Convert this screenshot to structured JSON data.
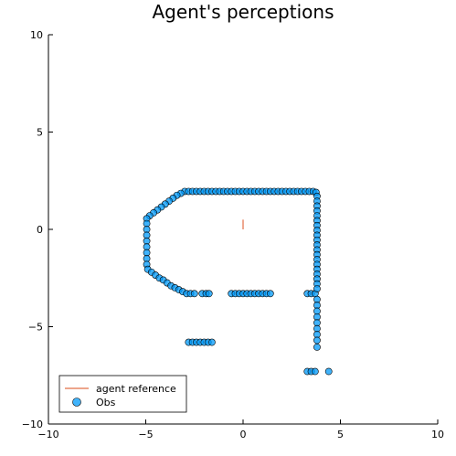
{
  "chart_data": {
    "type": "scatter",
    "title": "Agent's perceptions",
    "xlabel": "",
    "ylabel": "",
    "xlim": [
      -10,
      10
    ],
    "ylim": [
      -10,
      10
    ],
    "x_ticks": [
      -10,
      -5,
      0,
      5,
      10
    ],
    "y_ticks": [
      -10,
      -5,
      0,
      5,
      10
    ],
    "x_tick_labels": [
      "−10",
      "−5",
      "0",
      "5",
      "10"
    ],
    "y_tick_labels": [
      "−10",
      "−5",
      "0",
      "5",
      "10"
    ],
    "grid": false,
    "legend_position": "bottom-left",
    "colors": {
      "observations": "#009AFA",
      "agent_reference": "#E26F46"
    },
    "series": [
      {
        "name": "agent reference",
        "kind": "line",
        "points": [
          [
            0,
            0
          ],
          [
            0,
            0.5
          ]
        ]
      },
      {
        "name": "Obs",
        "kind": "scatter",
        "points": [
          [
            -3.0,
            1.95
          ],
          [
            -2.8,
            1.95
          ],
          [
            -2.6,
            1.95
          ],
          [
            -2.4,
            1.95
          ],
          [
            -2.2,
            1.95
          ],
          [
            -2.0,
            1.95
          ],
          [
            -1.8,
            1.95
          ],
          [
            -1.6,
            1.95
          ],
          [
            -1.4,
            1.95
          ],
          [
            -1.2,
            1.95
          ],
          [
            -1.0,
            1.95
          ],
          [
            -0.8,
            1.95
          ],
          [
            -0.6,
            1.95
          ],
          [
            -0.4,
            1.95
          ],
          [
            -0.2,
            1.95
          ],
          [
            0.0,
            1.95
          ],
          [
            0.2,
            1.95
          ],
          [
            0.4,
            1.95
          ],
          [
            0.6,
            1.95
          ],
          [
            0.8,
            1.95
          ],
          [
            1.0,
            1.95
          ],
          [
            1.2,
            1.95
          ],
          [
            1.4,
            1.95
          ],
          [
            1.6,
            1.95
          ],
          [
            1.8,
            1.95
          ],
          [
            2.0,
            1.95
          ],
          [
            2.2,
            1.95
          ],
          [
            2.4,
            1.95
          ],
          [
            2.6,
            1.95
          ],
          [
            2.8,
            1.95
          ],
          [
            3.0,
            1.95
          ],
          [
            3.2,
            1.95
          ],
          [
            3.4,
            1.95
          ],
          [
            3.6,
            1.95
          ],
          [
            3.75,
            1.9
          ],
          [
            -3.2,
            1.85
          ],
          [
            -3.4,
            1.75
          ],
          [
            -3.6,
            1.6
          ],
          [
            -3.8,
            1.45
          ],
          [
            -4.0,
            1.3
          ],
          [
            -4.2,
            1.15
          ],
          [
            -4.4,
            1.0
          ],
          [
            -4.6,
            0.85
          ],
          [
            -4.8,
            0.7
          ],
          [
            -4.95,
            0.55
          ],
          [
            -4.95,
            0.3
          ],
          [
            -4.95,
            0.0
          ],
          [
            -4.95,
            -0.3
          ],
          [
            -4.95,
            -0.6
          ],
          [
            -4.95,
            -0.9
          ],
          [
            -4.95,
            -1.2
          ],
          [
            -4.95,
            -1.5
          ],
          [
            -4.95,
            -1.8
          ],
          [
            -4.9,
            -2.05
          ],
          [
            -4.7,
            -2.2
          ],
          [
            -4.5,
            -2.35
          ],
          [
            -4.3,
            -2.5
          ],
          [
            -4.1,
            -2.6
          ],
          [
            -3.9,
            -2.75
          ],
          [
            -3.7,
            -2.9
          ],
          [
            -3.5,
            -3.0
          ],
          [
            -3.3,
            -3.1
          ],
          [
            -3.1,
            -3.2
          ],
          [
            -2.9,
            -3.3
          ],
          [
            -2.7,
            -3.3
          ],
          [
            -2.5,
            -3.3
          ],
          [
            -2.1,
            -3.3
          ],
          [
            -1.9,
            -3.3
          ],
          [
            -1.75,
            -3.3
          ],
          [
            -0.6,
            -3.3
          ],
          [
            -0.4,
            -3.3
          ],
          [
            -0.2,
            -3.3
          ],
          [
            0.0,
            -3.3
          ],
          [
            0.2,
            -3.3
          ],
          [
            0.4,
            -3.3
          ],
          [
            0.6,
            -3.3
          ],
          [
            0.8,
            -3.3
          ],
          [
            1.0,
            -3.3
          ],
          [
            1.2,
            -3.3
          ],
          [
            1.4,
            -3.3
          ],
          [
            3.3,
            -3.3
          ],
          [
            3.5,
            -3.3
          ],
          [
            3.7,
            -3.3
          ],
          [
            3.8,
            1.7
          ],
          [
            3.8,
            1.45
          ],
          [
            3.8,
            1.2
          ],
          [
            3.8,
            0.95
          ],
          [
            3.8,
            0.7
          ],
          [
            3.8,
            0.45
          ],
          [
            3.8,
            0.2
          ],
          [
            3.8,
            -0.05
          ],
          [
            3.8,
            -0.3
          ],
          [
            3.8,
            -0.55
          ],
          [
            3.8,
            -0.8
          ],
          [
            3.8,
            -1.05
          ],
          [
            3.8,
            -1.3
          ],
          [
            3.8,
            -1.55
          ],
          [
            3.8,
            -1.8
          ],
          [
            3.8,
            -2.05
          ],
          [
            3.8,
            -2.3
          ],
          [
            3.8,
            -2.55
          ],
          [
            3.8,
            -2.8
          ],
          [
            3.8,
            -3.05
          ],
          [
            3.8,
            -3.6
          ],
          [
            3.8,
            -3.9
          ],
          [
            3.8,
            -4.2
          ],
          [
            3.8,
            -4.5
          ],
          [
            3.8,
            -4.8
          ],
          [
            3.8,
            -5.1
          ],
          [
            3.8,
            -5.4
          ],
          [
            3.8,
            -5.7
          ],
          [
            3.8,
            -6.05
          ],
          [
            -2.8,
            -5.8
          ],
          [
            -2.6,
            -5.8
          ],
          [
            -2.4,
            -5.8
          ],
          [
            -2.2,
            -5.8
          ],
          [
            -2.0,
            -5.8
          ],
          [
            -1.8,
            -5.8
          ],
          [
            -1.6,
            -5.8
          ],
          [
            3.3,
            -7.3
          ],
          [
            3.5,
            -7.3
          ],
          [
            3.7,
            -7.3
          ],
          [
            4.4,
            -7.3
          ]
        ]
      }
    ]
  }
}
